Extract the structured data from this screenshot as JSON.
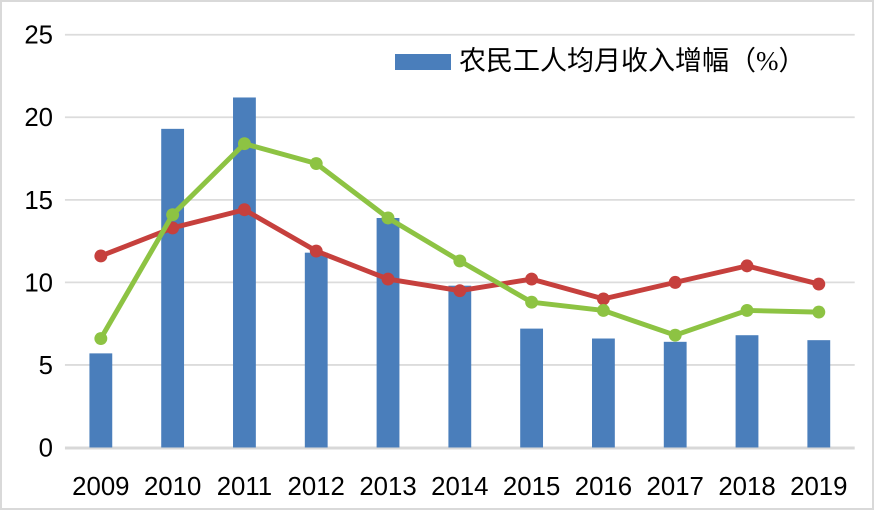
{
  "chart": {
    "legend": {
      "label": "农民工人均月收入增幅（%）",
      "swatch_color": "#4a7ebb"
    }
  },
  "chart_data": {
    "type": "combo-bar-line",
    "title": "",
    "xlabel": "",
    "ylabel": "",
    "categories": [
      "2009",
      "2010",
      "2011",
      "2012",
      "2013",
      "2014",
      "2015",
      "2016",
      "2017",
      "2018",
      "2019"
    ],
    "series": [
      {
        "name": "农民工人均月收入增幅（%）",
        "type": "bar",
        "color": "#4a7ebb",
        "values": [
          5.7,
          19.3,
          21.2,
          11.8,
          13.9,
          9.8,
          7.2,
          6.6,
          6.4,
          6.8,
          6.5
        ]
      },
      {
        "name": "red-line",
        "type": "line",
        "color": "#c6403d",
        "values": [
          11.6,
          13.3,
          14.4,
          11.9,
          10.2,
          9.5,
          10.2,
          9.0,
          10.0,
          11.0,
          9.9
        ]
      },
      {
        "name": "green-line",
        "type": "line",
        "color": "#8dc343",
        "values": [
          6.6,
          14.1,
          18.4,
          17.2,
          13.9,
          11.3,
          8.8,
          8.3,
          6.8,
          8.3,
          8.2
        ]
      }
    ],
    "ylim": [
      0,
      25
    ],
    "yticks": [
      0,
      5,
      10,
      15,
      20,
      25
    ],
    "grid": true,
    "gridline_color": "#dcdcdc",
    "baseline_color": "#d8d8d8",
    "axis_text_color": "#000000",
    "legend_position": "top-center"
  }
}
